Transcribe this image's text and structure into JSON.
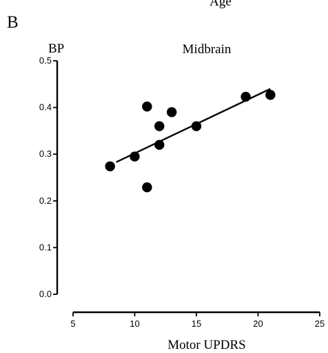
{
  "panel_label": "B",
  "cut_heading": "Age",
  "chart_data": {
    "type": "scatter",
    "title": "Midbrain",
    "ylabel": "BP",
    "xlabel": "Motor UPDRS",
    "xlim": [
      5,
      25
    ],
    "ylim": [
      0.0,
      0.5
    ],
    "x_ticks": [
      5,
      10,
      15,
      20,
      25
    ],
    "y_ticks": [
      0.0,
      0.1,
      0.2,
      0.3,
      0.4,
      0.5
    ],
    "x_tick_labels": [
      "5",
      "10",
      "15",
      "20",
      "25"
    ],
    "y_tick_labels": [
      "0.0",
      "0.1",
      "0.2",
      "0.3",
      "0.4",
      "0.5"
    ],
    "grid": false,
    "points": [
      {
        "x": 8,
        "y": 0.274
      },
      {
        "x": 10,
        "y": 0.295
      },
      {
        "x": 11,
        "y": 0.402
      },
      {
        "x": 11,
        "y": 0.229
      },
      {
        "x": 12,
        "y": 0.36
      },
      {
        "x": 12,
        "y": 0.32
      },
      {
        "x": 13,
        "y": 0.39
      },
      {
        "x": 15,
        "y": 0.36
      },
      {
        "x": 19,
        "y": 0.423
      },
      {
        "x": 21,
        "y": 0.427
      }
    ],
    "fit_line": {
      "x": [
        8.5,
        21
      ],
      "y": [
        0.283,
        0.44
      ]
    }
  }
}
